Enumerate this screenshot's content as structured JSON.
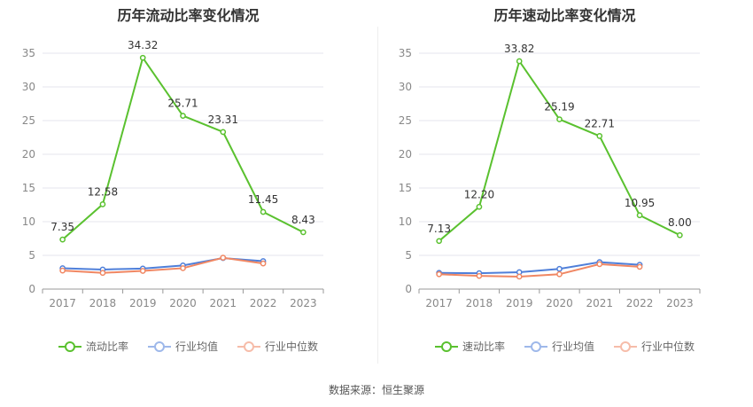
{
  "source_text": "数据来源：恒生聚源",
  "chart_data": [
    {
      "type": "line",
      "title": "历年流动比率变化情况",
      "categories": [
        "2017",
        "2018",
        "2019",
        "2020",
        "2021",
        "2022",
        "2023"
      ],
      "ylim": [
        0,
        35
      ],
      "yticks": [
        0,
        5,
        10,
        15,
        20,
        25,
        30,
        35
      ],
      "grid": true,
      "legend_position": "bottom",
      "series": [
        {
          "name": "流动比率",
          "color": "#5ac12f",
          "values": [
            7.35,
            12.58,
            34.32,
            25.71,
            23.31,
            11.45,
            8.43
          ],
          "labels": [
            "7.35",
            "12.58",
            "34.32",
            "25.71",
            "23.31",
            "11.45",
            "8.43"
          ]
        },
        {
          "name": "行业均值",
          "color": "#4f7fd9",
          "values": [
            3.1,
            2.9,
            3.05,
            3.5,
            4.6,
            4.15,
            null
          ]
        },
        {
          "name": "行业中位数",
          "color": "#f08763",
          "values": [
            2.75,
            2.4,
            2.7,
            3.1,
            4.65,
            3.8,
            null
          ]
        }
      ]
    },
    {
      "type": "line",
      "title": "历年速动比率变化情况",
      "categories": [
        "2017",
        "2018",
        "2019",
        "2020",
        "2021",
        "2022",
        "2023"
      ],
      "ylim": [
        0,
        35
      ],
      "yticks": [
        0,
        5,
        10,
        15,
        20,
        25,
        30,
        35
      ],
      "grid": true,
      "legend_position": "bottom",
      "series": [
        {
          "name": "速动比率",
          "color": "#5ac12f",
          "values": [
            7.13,
            12.2,
            33.82,
            25.19,
            22.71,
            10.95,
            8.0
          ],
          "labels": [
            "7.13",
            "12.20",
            "33.82",
            "25.19",
            "22.71",
            "10.95",
            "8.00"
          ]
        },
        {
          "name": "行业均值",
          "color": "#4f7fd9",
          "values": [
            2.4,
            2.35,
            2.5,
            3.0,
            4.0,
            3.6,
            null
          ]
        },
        {
          "name": "行业中位数",
          "color": "#f08763",
          "values": [
            2.2,
            1.95,
            1.85,
            2.2,
            3.7,
            3.3,
            null
          ]
        }
      ]
    }
  ]
}
